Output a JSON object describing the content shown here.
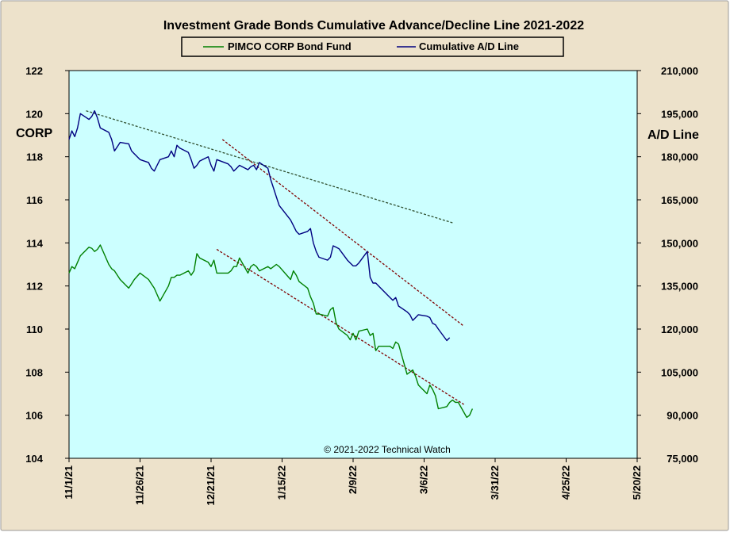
{
  "chart_data": {
    "type": "line",
    "title": "Investment  Grade Bonds Cumulative  Advance/Decline  Line  2021-2022",
    "left_axis_label": "CORP",
    "right_axis_label": "A/D Line",
    "copyright": "© 2021-2022  Technical Watch",
    "x_axis": {
      "min": "2021-11-01",
      "max": "2022-05-20",
      "tick_labels": [
        "11/1/21",
        "11/26/21",
        "12/21/21",
        "1/15/22",
        "2/9/22",
        "3/6/22",
        "3/31/22",
        "4/25/22",
        "5/20/22"
      ]
    },
    "y_left": {
      "min": 104,
      "max": 122,
      "tick_labels": [
        "104",
        "106",
        "108",
        "110",
        "112",
        "114",
        "116",
        "118",
        "120",
        "122"
      ]
    },
    "y_right": {
      "min": 75000,
      "max": 210000,
      "tick_labels": [
        "75,000",
        "90,000",
        "105,000",
        "120,000",
        "135,000",
        "150,000",
        "165,000",
        "180,000",
        "195,000",
        "210,000"
      ]
    },
    "legend": {
      "placement": "top-center",
      "box": true
    },
    "grid": false,
    "colors": {
      "frame_bg": "#ede2cb",
      "plot_bg": "#ccffff",
      "corp": "#008000",
      "ad": "#000080",
      "trend_grey": "#2f4f2f",
      "trend_red": "#800000"
    },
    "series": [
      {
        "name": "PIMCO CORP Bond Fund",
        "axis": "left",
        "points": [
          [
            "2021-11-01",
            112.6
          ],
          [
            "2021-11-02",
            112.9
          ],
          [
            "2021-11-03",
            112.8
          ],
          [
            "2021-11-04",
            113.1
          ],
          [
            "2021-11-05",
            113.4
          ],
          [
            "2021-11-08",
            113.8
          ],
          [
            "2021-11-09",
            113.75
          ],
          [
            "2021-11-10",
            113.6
          ],
          [
            "2021-11-11",
            113.7
          ],
          [
            "2021-11-12",
            113.9
          ],
          [
            "2021-11-15",
            113.0
          ],
          [
            "2021-11-16",
            112.8
          ],
          [
            "2021-11-17",
            112.7
          ],
          [
            "2021-11-18",
            112.5
          ],
          [
            "2021-11-19",
            112.3
          ],
          [
            "2021-11-22",
            111.9
          ],
          [
            "2021-11-23",
            112.1
          ],
          [
            "2021-11-24",
            112.3
          ],
          [
            "2021-11-26",
            112.6
          ],
          [
            "2021-11-29",
            112.3
          ],
          [
            "2021-11-30",
            112.1
          ],
          [
            "2021-12-01",
            111.9
          ],
          [
            "2021-12-02",
            111.6
          ],
          [
            "2021-12-03",
            111.3
          ],
          [
            "2021-12-06",
            112.0
          ],
          [
            "2021-12-07",
            112.4
          ],
          [
            "2021-12-08",
            112.4
          ],
          [
            "2021-12-09",
            112.5
          ],
          [
            "2021-12-10",
            112.5
          ],
          [
            "2021-12-13",
            112.7
          ],
          [
            "2021-12-14",
            112.5
          ],
          [
            "2021-12-15",
            112.7
          ],
          [
            "2021-12-16",
            113.5
          ],
          [
            "2021-12-17",
            113.3
          ],
          [
            "2021-12-20",
            113.1
          ],
          [
            "2021-12-21",
            112.9
          ],
          [
            "2021-12-22",
            113.2
          ],
          [
            "2021-12-23",
            112.6
          ],
          [
            "2021-12-27",
            112.6
          ],
          [
            "2021-12-28",
            112.7
          ],
          [
            "2021-12-29",
            112.9
          ],
          [
            "2021-12-30",
            112.9
          ],
          [
            "2021-12-31",
            113.3
          ],
          [
            "2022-01-03",
            112.6
          ],
          [
            "2022-01-04",
            112.9
          ],
          [
            "2022-01-05",
            113.0
          ],
          [
            "2022-01-06",
            112.9
          ],
          [
            "2022-01-07",
            112.7
          ],
          [
            "2022-01-10",
            112.9
          ],
          [
            "2022-01-11",
            112.8
          ],
          [
            "2022-01-12",
            112.9
          ],
          [
            "2022-01-13",
            113.0
          ],
          [
            "2022-01-14",
            112.9
          ],
          [
            "2022-01-18",
            112.3
          ],
          [
            "2022-01-19",
            112.7
          ],
          [
            "2022-01-20",
            112.5
          ],
          [
            "2022-01-21",
            112.2
          ],
          [
            "2022-01-24",
            111.9
          ],
          [
            "2022-01-25",
            111.5
          ],
          [
            "2022-01-26",
            111.2
          ],
          [
            "2022-01-27",
            110.7
          ],
          [
            "2022-01-28",
            110.7
          ],
          [
            "2022-01-31",
            110.6
          ],
          [
            "2022-02-01",
            110.9
          ],
          [
            "2022-02-02",
            111.0
          ],
          [
            "2022-02-03",
            110.3
          ],
          [
            "2022-02-04",
            110.0
          ],
          [
            "2022-02-07",
            109.7
          ],
          [
            "2022-02-08",
            109.5
          ],
          [
            "2022-02-09",
            109.8
          ],
          [
            "2022-02-10",
            109.5
          ],
          [
            "2022-02-11",
            109.9
          ],
          [
            "2022-02-14",
            110.0
          ],
          [
            "2022-02-15",
            109.7
          ],
          [
            "2022-02-16",
            109.8
          ],
          [
            "2022-02-17",
            109.0
          ],
          [
            "2022-02-18",
            109.2
          ],
          [
            "2022-02-22",
            109.2
          ],
          [
            "2022-02-23",
            109.1
          ],
          [
            "2022-02-24",
            109.4
          ],
          [
            "2022-02-25",
            109.3
          ],
          [
            "2022-02-28",
            107.9
          ],
          [
            "2022-03-01",
            108.0
          ],
          [
            "2022-03-02",
            108.1
          ],
          [
            "2022-03-03",
            107.8
          ],
          [
            "2022-03-04",
            107.4
          ],
          [
            "2022-03-07",
            107.0
          ],
          [
            "2022-03-08",
            107.4
          ],
          [
            "2022-03-09",
            107.2
          ],
          [
            "2022-03-10",
            106.9
          ],
          [
            "2022-03-11",
            106.3
          ],
          [
            "2022-03-14",
            106.4
          ],
          [
            "2022-03-15",
            106.6
          ],
          [
            "2022-03-16",
            106.7
          ],
          [
            "2022-03-17",
            106.6
          ],
          [
            "2022-03-18",
            106.6
          ],
          [
            "2022-03-21",
            105.9
          ],
          [
            "2022-03-22",
            106.0
          ],
          [
            "2022-03-23",
            106.3
          ]
        ]
      },
      {
        "name": "Cumulative A/D Line",
        "axis": "right",
        "points": [
          [
            "2021-11-01",
            186000
          ],
          [
            "2021-11-02",
            189000
          ],
          [
            "2021-11-03",
            187000
          ],
          [
            "2021-11-04",
            190000
          ],
          [
            "2021-11-05",
            195000
          ],
          [
            "2021-11-08",
            193000
          ],
          [
            "2021-11-09",
            194000
          ],
          [
            "2021-11-10",
            196000
          ],
          [
            "2021-11-11",
            193500
          ],
          [
            "2021-11-12",
            190000
          ],
          [
            "2021-11-15",
            188500
          ],
          [
            "2021-11-16",
            186000
          ],
          [
            "2021-11-17",
            182000
          ],
          [
            "2021-11-18",
            183500
          ],
          [
            "2021-11-19",
            185000
          ],
          [
            "2021-11-22",
            184500
          ],
          [
            "2021-11-23",
            182000
          ],
          [
            "2021-11-24",
            181000
          ],
          [
            "2021-11-26",
            179000
          ],
          [
            "2021-11-29",
            178000
          ],
          [
            "2021-11-30",
            176000
          ],
          [
            "2021-12-01",
            175000
          ],
          [
            "2021-12-02",
            177000
          ],
          [
            "2021-12-03",
            179000
          ],
          [
            "2021-12-06",
            180000
          ],
          [
            "2021-12-07",
            182000
          ],
          [
            "2021-12-08",
            180000
          ],
          [
            "2021-12-09",
            184000
          ],
          [
            "2021-12-10",
            183000
          ],
          [
            "2021-12-13",
            181500
          ],
          [
            "2021-12-14",
            179000
          ],
          [
            "2021-12-15",
            176000
          ],
          [
            "2021-12-16",
            177000
          ],
          [
            "2021-12-17",
            178500
          ],
          [
            "2021-12-20",
            180000
          ],
          [
            "2021-12-21",
            177000
          ],
          [
            "2021-12-22",
            175000
          ],
          [
            "2021-12-23",
            179000
          ],
          [
            "2021-12-27",
            177500
          ],
          [
            "2021-12-28",
            176500
          ],
          [
            "2021-12-29",
            175000
          ],
          [
            "2021-12-30",
            176000
          ],
          [
            "2021-12-31",
            177000
          ],
          [
            "2022-01-03",
            175500
          ],
          [
            "2022-01-04",
            176500
          ],
          [
            "2022-01-05",
            177000
          ],
          [
            "2022-01-06",
            175500
          ],
          [
            "2022-01-07",
            178000
          ],
          [
            "2022-01-10",
            176000
          ],
          [
            "2022-01-11",
            172000
          ],
          [
            "2022-01-12",
            169000
          ],
          [
            "2022-01-13",
            166000
          ],
          [
            "2022-01-14",
            163000
          ],
          [
            "2022-01-18",
            158000
          ],
          [
            "2022-01-19",
            156000
          ],
          [
            "2022-01-20",
            154000
          ],
          [
            "2022-01-21",
            153000
          ],
          [
            "2022-01-24",
            154000
          ],
          [
            "2022-01-25",
            155000
          ],
          [
            "2022-01-26",
            150000
          ],
          [
            "2022-01-27",
            147000
          ],
          [
            "2022-01-28",
            145000
          ],
          [
            "2022-01-31",
            144000
          ],
          [
            "2022-02-01",
            145000
          ],
          [
            "2022-02-02",
            149000
          ],
          [
            "2022-02-03",
            148500
          ],
          [
            "2022-02-04",
            148000
          ],
          [
            "2022-02-07",
            144000
          ],
          [
            "2022-02-08",
            143000
          ],
          [
            "2022-02-09",
            142000
          ],
          [
            "2022-02-10",
            142000
          ],
          [
            "2022-02-11",
            143000
          ],
          [
            "2022-02-14",
            147000
          ],
          [
            "2022-02-15",
            138000
          ],
          [
            "2022-02-16",
            136000
          ],
          [
            "2022-02-17",
            136000
          ],
          [
            "2022-02-18",
            135000
          ],
          [
            "2022-02-22",
            131000
          ],
          [
            "2022-02-23",
            130000
          ],
          [
            "2022-02-24",
            131000
          ],
          [
            "2022-02-25",
            128000
          ],
          [
            "2022-02-28",
            126000
          ],
          [
            "2022-03-01",
            125000
          ],
          [
            "2022-03-02",
            123000
          ],
          [
            "2022-03-03",
            124000
          ],
          [
            "2022-03-04",
            125000
          ],
          [
            "2022-03-07",
            124500
          ],
          [
            "2022-03-08",
            124000
          ],
          [
            "2022-03-09",
            122000
          ],
          [
            "2022-03-10",
            121500
          ],
          [
            "2022-03-11",
            120000
          ],
          [
            "2022-03-14",
            116000
          ],
          [
            "2022-03-15",
            117000
          ]
        ]
      }
    ],
    "trendlines": [
      {
        "axis": "right",
        "color": "grey",
        "from": [
          "2021-11-07",
          196000
        ],
        "to": [
          "2022-03-16",
          157000
        ]
      },
      {
        "axis": "right",
        "color": "red",
        "from": [
          "2021-12-25",
          186000
        ],
        "to": [
          "2022-03-20",
          121000
        ]
      },
      {
        "axis": "left",
        "color": "red",
        "from": [
          "2021-12-23",
          113.7
        ],
        "to": [
          "2022-03-20",
          106.5
        ]
      }
    ]
  }
}
